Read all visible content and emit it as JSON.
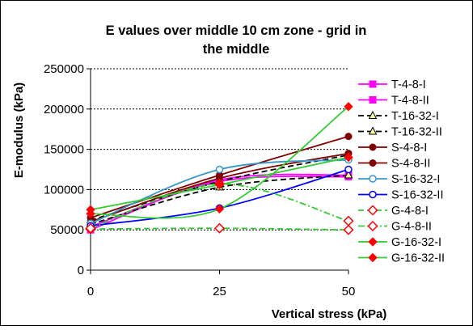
{
  "chart_data": {
    "type": "line",
    "title": "E values over middle 10 cm zone - grid in the middle",
    "title_lines": [
      "E values over middle 10 cm zone - grid in",
      "the middle"
    ],
    "xlabel": "Vertical stress (kPa)",
    "ylabel": "E-modulus (kPa)",
    "x": [
      0,
      25,
      50
    ],
    "x_ticks": [
      "0",
      "25",
      "50"
    ],
    "y_ticks": [
      "0",
      "50000",
      "100000",
      "150000",
      "200000",
      "250000"
    ],
    "ylim": [
      0,
      250000
    ],
    "grid": "horizontal dashed at major ticks",
    "legend_position": "right",
    "series": [
      {
        "name": "T-4-8-I",
        "values": [
          50000,
          112000,
          118000
        ],
        "color": "#ff00ff",
        "dash": "solid",
        "marker": "square"
      },
      {
        "name": "T-4-8-II",
        "values": [
          54000,
          110000,
          116000
        ],
        "color": "#ff00ff",
        "dash": "solid",
        "marker": "square"
      },
      {
        "name": "T-16-32-I",
        "values": [
          57000,
          103000,
          118000
        ],
        "color": "#000000",
        "dash": "dashed",
        "marker": "triangle"
      },
      {
        "name": "T-16-32-II",
        "values": [
          62000,
          110000,
          143000
        ],
        "color": "#000000",
        "dash": "dashed",
        "marker": "triangle"
      },
      {
        "name": "S-4-8-I",
        "values": [
          65000,
          118000,
          166000
        ],
        "color": "#800000",
        "dash": "solid",
        "marker": "circle"
      },
      {
        "name": "S-4-8-II",
        "values": [
          60000,
          114000,
          145000
        ],
        "color": "#800000",
        "dash": "solid",
        "marker": "circle"
      },
      {
        "name": "S-16-32-I",
        "values": [
          58000,
          125000,
          137000
        ],
        "color": "#3399cc",
        "dash": "solid",
        "marker": "circle-open"
      },
      {
        "name": "S-16-32-II",
        "values": [
          55000,
          77000,
          125000
        ],
        "color": "#0000ff",
        "dash": "solid",
        "marker": "circle-open"
      },
      {
        "name": "G-4-8-I",
        "values": [
          51000,
          52000,
          50000
        ],
        "color": "#33cc33",
        "dash": "dashed",
        "marker": "diamond-open"
      },
      {
        "name": "G-4-8-II",
        "values": [
          52000,
          107000,
          61000
        ],
        "color": "#33cc33",
        "dash": "dashdot",
        "marker": "diamond-open"
      },
      {
        "name": "G-16-32-I",
        "values": [
          70000,
          76000,
          203000
        ],
        "color": "#33cc33",
        "dash": "solid",
        "marker": "diamond"
      },
      {
        "name": "G-16-32-II",
        "values": [
          75000,
          106000,
          140000
        ],
        "color": "#33cc33",
        "dash": "solid",
        "marker": "diamond"
      }
    ]
  }
}
